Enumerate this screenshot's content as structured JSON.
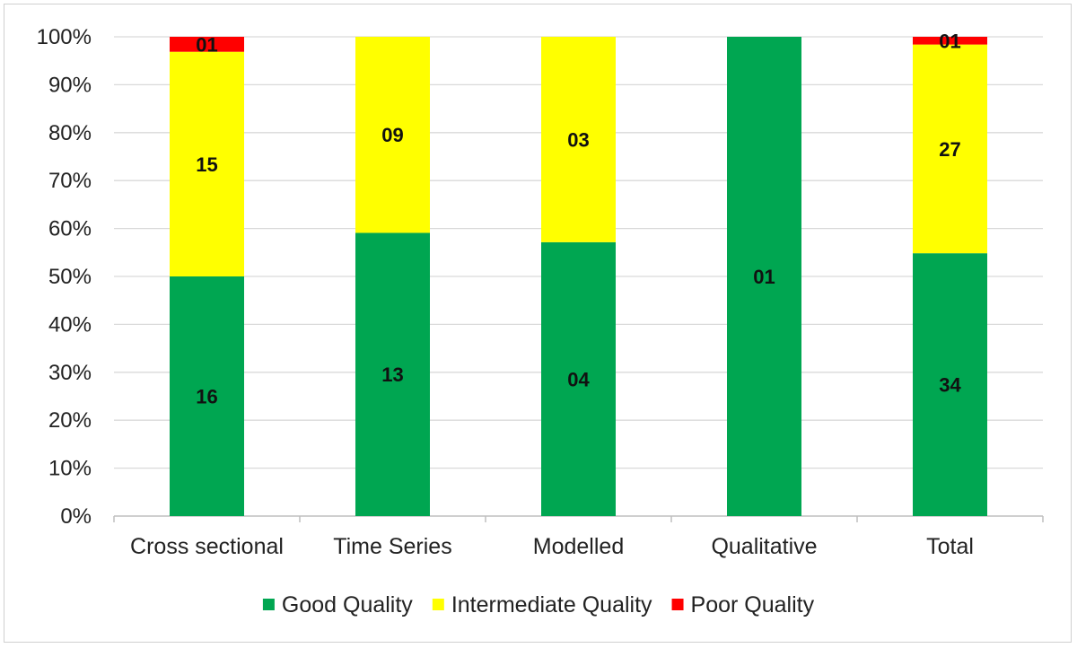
{
  "chart_data": {
    "type": "bar",
    "stacked": true,
    "percent_stacked": true,
    "categories": [
      "Cross sectional",
      "Time Series",
      "Modelled",
      "Qualitative",
      "Total"
    ],
    "series": [
      {
        "name": "Good Quality",
        "color": "#00a651",
        "values": [
          16,
          13,
          4,
          1,
          34
        ],
        "labels": [
          "16",
          "13",
          "04",
          "01",
          "34"
        ]
      },
      {
        "name": "Intermediate Quality",
        "color": "#ffff00",
        "values": [
          15,
          9,
          3,
          0,
          27
        ],
        "labels": [
          "15",
          "09",
          "03",
          "",
          "27"
        ]
      },
      {
        "name": "Poor Quality",
        "color": "#ff0000",
        "values": [
          1,
          0,
          0,
          0,
          1
        ],
        "labels": [
          "01",
          "",
          "",
          "",
          "01"
        ]
      }
    ],
    "yticks": [
      "0%",
      "10%",
      "20%",
      "30%",
      "40%",
      "50%",
      "60%",
      "70%",
      "80%",
      "90%",
      "100%"
    ],
    "ylim": [
      0,
      100
    ],
    "grid": true,
    "legend_position": "bottom"
  }
}
